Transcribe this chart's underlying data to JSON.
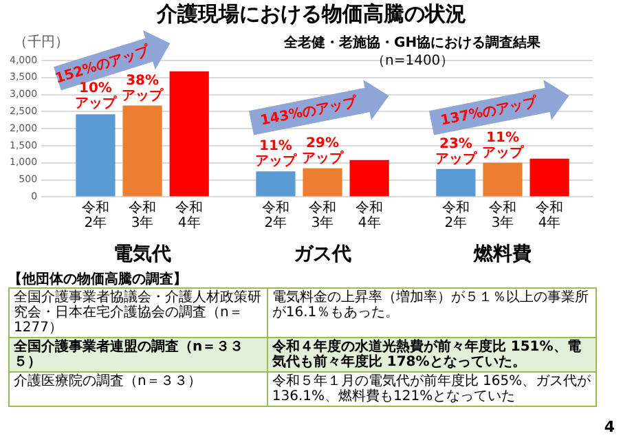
{
  "chart_data": {
    "type": "bar",
    "title": "介護現場における物価高騰の状況",
    "subtitle": "全老健・老施協・GH協における調査結果",
    "ylabel": "（千円）",
    "categories": [
      "電気代",
      "ガス代",
      "燃料費"
    ],
    "series": [
      {
        "name": "令和2年",
        "color": "#5b9bd5",
        "values": [
          2420,
          750,
          820
        ]
      },
      {
        "name": "令和3年",
        "color": "#ed7d31",
        "values": [
          2680,
          840,
          1000
        ]
      },
      {
        "name": "令和4年",
        "color": "#ff0000",
        "values": [
          3680,
          1080,
          1120
        ]
      }
    ],
    "ylim": [
      0,
      4000
    ],
    "yticks": [
      {
        "value": 0,
        "label": "0"
      },
      {
        "value": 500,
        "label": "500"
      },
      {
        "value": 1000,
        "label": "1,000"
      },
      {
        "value": 1500,
        "label": "1,500"
      },
      {
        "value": 2000,
        "label": "2,000"
      },
      {
        "value": 2500,
        "label": "2,500"
      },
      {
        "value": 3000,
        "label": "3,000"
      },
      {
        "value": 3500,
        "label": "3,500"
      },
      {
        "value": 4000,
        "label": "4,000"
      }
    ],
    "grid": "y",
    "annotations": [
      "152%のアップ",
      "143%のアップ",
      "137%のアップ",
      "（n=1400）",
      "【他団体の物価高騰の調査】",
      "全国介護事業者協議会・介護人材政策研究会・日本在宅介護協会の調査（n＝1277）",
      "電気料金の上昇率（増加率）が５１％以上の事業所が16.1％もあった。",
      "全国介護事業者連盟の調査（n＝３３５）",
      "令和４年度の水道光熱費が前々年度比 151%、電気代も前々年度比 178%となっていた。",
      "介護医療院の調査（n＝３３）",
      "令和５年１月の電気代が前年度比 165%、ガス代が136.1%、燃料費も121%となっていた",
      "4",
      "10%\nアップ",
      {
        "text": "38%\nアップ",
        "x": "電気代",
        "y": 2680
      },
      {
        "text": "11%\nアップ",
        "x": "ガス代",
        "y": 750
      },
      {
        "text": "29%\nアップ",
        "x": "ガス代",
        "y": 840
      },
      {
        "text": "23%\nアップ",
        "x": "燃料費",
        "y": 820
      },
      {
        "text": "11%\nアップ",
        "x": "燃料費",
        "y": 1000
      }
    ]
  }
}
